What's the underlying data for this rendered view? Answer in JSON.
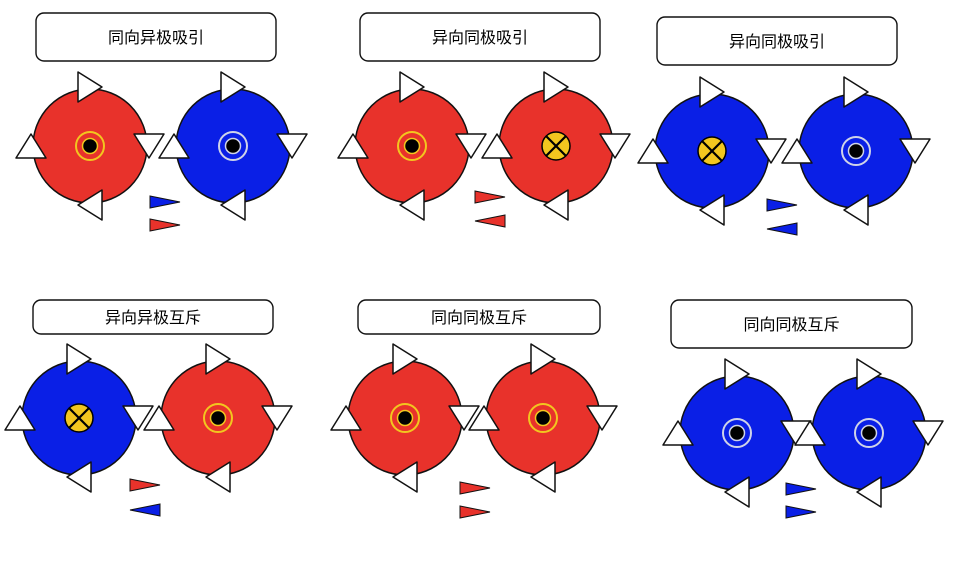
{
  "colors": {
    "red": "#e8322b",
    "blue": "#0a1fe6",
    "outline": "#111111",
    "arrow_fill": "#ffffff",
    "marker_ring_on_red": "#f2c61f",
    "marker_ring_on_blue": "#cfd3e8",
    "cross_fill": "#f2c61f"
  },
  "panels": [
    {
      "id": "p1",
      "label": "同向异极吸引",
      "left_disk": {
        "color": "red",
        "marker": "dot"
      },
      "right_disk": {
        "color": "blue",
        "marker": "dot"
      },
      "small_arrows": [
        {
          "color": "blue",
          "direction": "right"
        },
        {
          "color": "red",
          "direction": "right"
        }
      ]
    },
    {
      "id": "p2",
      "label": "异向同极吸引",
      "left_disk": {
        "color": "red",
        "marker": "dot"
      },
      "right_disk": {
        "color": "red",
        "marker": "cross"
      },
      "small_arrows": [
        {
          "color": "red",
          "direction": "right"
        },
        {
          "color": "red",
          "direction": "left"
        }
      ]
    },
    {
      "id": "p3",
      "label": "异向同极吸引",
      "left_disk": {
        "color": "blue",
        "marker": "cross"
      },
      "right_disk": {
        "color": "blue",
        "marker": "dot"
      },
      "small_arrows": [
        {
          "color": "blue",
          "direction": "right"
        },
        {
          "color": "blue",
          "direction": "left"
        }
      ]
    },
    {
      "id": "p4",
      "label": "异向异极互斥",
      "left_disk": {
        "color": "blue",
        "marker": "cross"
      },
      "right_disk": {
        "color": "red",
        "marker": "dot"
      },
      "small_arrows": [
        {
          "color": "red",
          "direction": "right"
        },
        {
          "color": "blue",
          "direction": "left"
        }
      ]
    },
    {
      "id": "p5",
      "label": "同向同极互斥",
      "left_disk": {
        "color": "red",
        "marker": "dot"
      },
      "right_disk": {
        "color": "red",
        "marker": "dot"
      },
      "small_arrows": [
        {
          "color": "red",
          "direction": "right"
        },
        {
          "color": "red",
          "direction": "right"
        }
      ]
    },
    {
      "id": "p6",
      "label": "同向同极互斥",
      "left_disk": {
        "color": "blue",
        "marker": "dot"
      },
      "right_disk": {
        "color": "blue",
        "marker": "dot"
      },
      "small_arrows": [
        {
          "color": "blue",
          "direction": "right"
        },
        {
          "color": "blue",
          "direction": "right"
        }
      ]
    }
  ]
}
